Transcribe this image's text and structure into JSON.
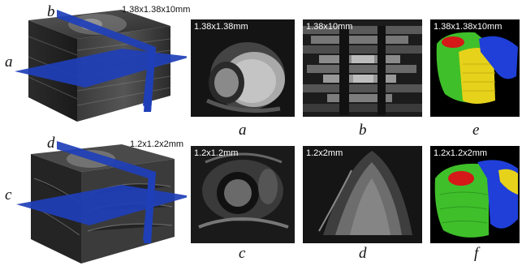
{
  "volumes": [
    {
      "resolution": "1.38x1.38x10mm",
      "plane_labels": [
        "b",
        "a"
      ]
    },
    {
      "resolution": "1.2x1.2x2mm",
      "plane_labels": [
        "d",
        "c"
      ]
    }
  ],
  "panels_top": [
    {
      "id": "a",
      "caption": "a",
      "overlay": "1.38x1.38mm",
      "kind": "short-axis"
    },
    {
      "id": "b",
      "caption": "b",
      "overlay": "1.38x10mm",
      "kind": "long-axis-coarse"
    },
    {
      "id": "e",
      "caption": "e",
      "overlay": "1.38x1.38x10mm",
      "kind": "segmentation"
    }
  ],
  "panels_bottom": [
    {
      "id": "c",
      "caption": "c",
      "overlay": "1.2x1.2mm",
      "kind": "short-axis"
    },
    {
      "id": "d",
      "caption": "d",
      "overlay": "1.2x2mm",
      "kind": "long-axis-fine"
    },
    {
      "id": "f",
      "caption": "f",
      "overlay": "1.2x1.2x2mm",
      "kind": "segmentation"
    }
  ],
  "colors": {
    "plane": "#1f3fb8",
    "seg_green": "#3fbf2a",
    "seg_yellow": "#e6d21a",
    "seg_blue": "#1f3fd8",
    "seg_red": "#d51818"
  }
}
